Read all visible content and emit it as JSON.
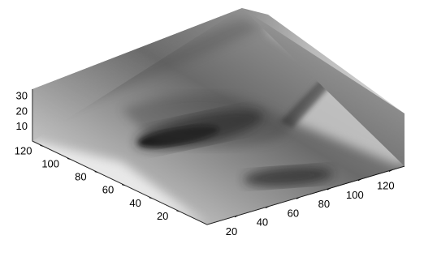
{
  "chart_data": {
    "type": "surface",
    "title": "",
    "xlabel": "",
    "ylabel": "",
    "zlabel": "",
    "x_ticks": [
      20,
      40,
      60,
      80,
      100,
      120
    ],
    "y_ticks": [
      20,
      40,
      60,
      80,
      100,
      120
    ],
    "z_ticks": [
      10,
      20,
      30
    ],
    "xlim": [
      0,
      128
    ],
    "ylim": [
      0,
      128
    ],
    "zlim": [
      0,
      34
    ],
    "grid": true,
    "colormap": "gray",
    "colors": {
      "grid": "#555555",
      "axis": "#000000"
    }
  }
}
